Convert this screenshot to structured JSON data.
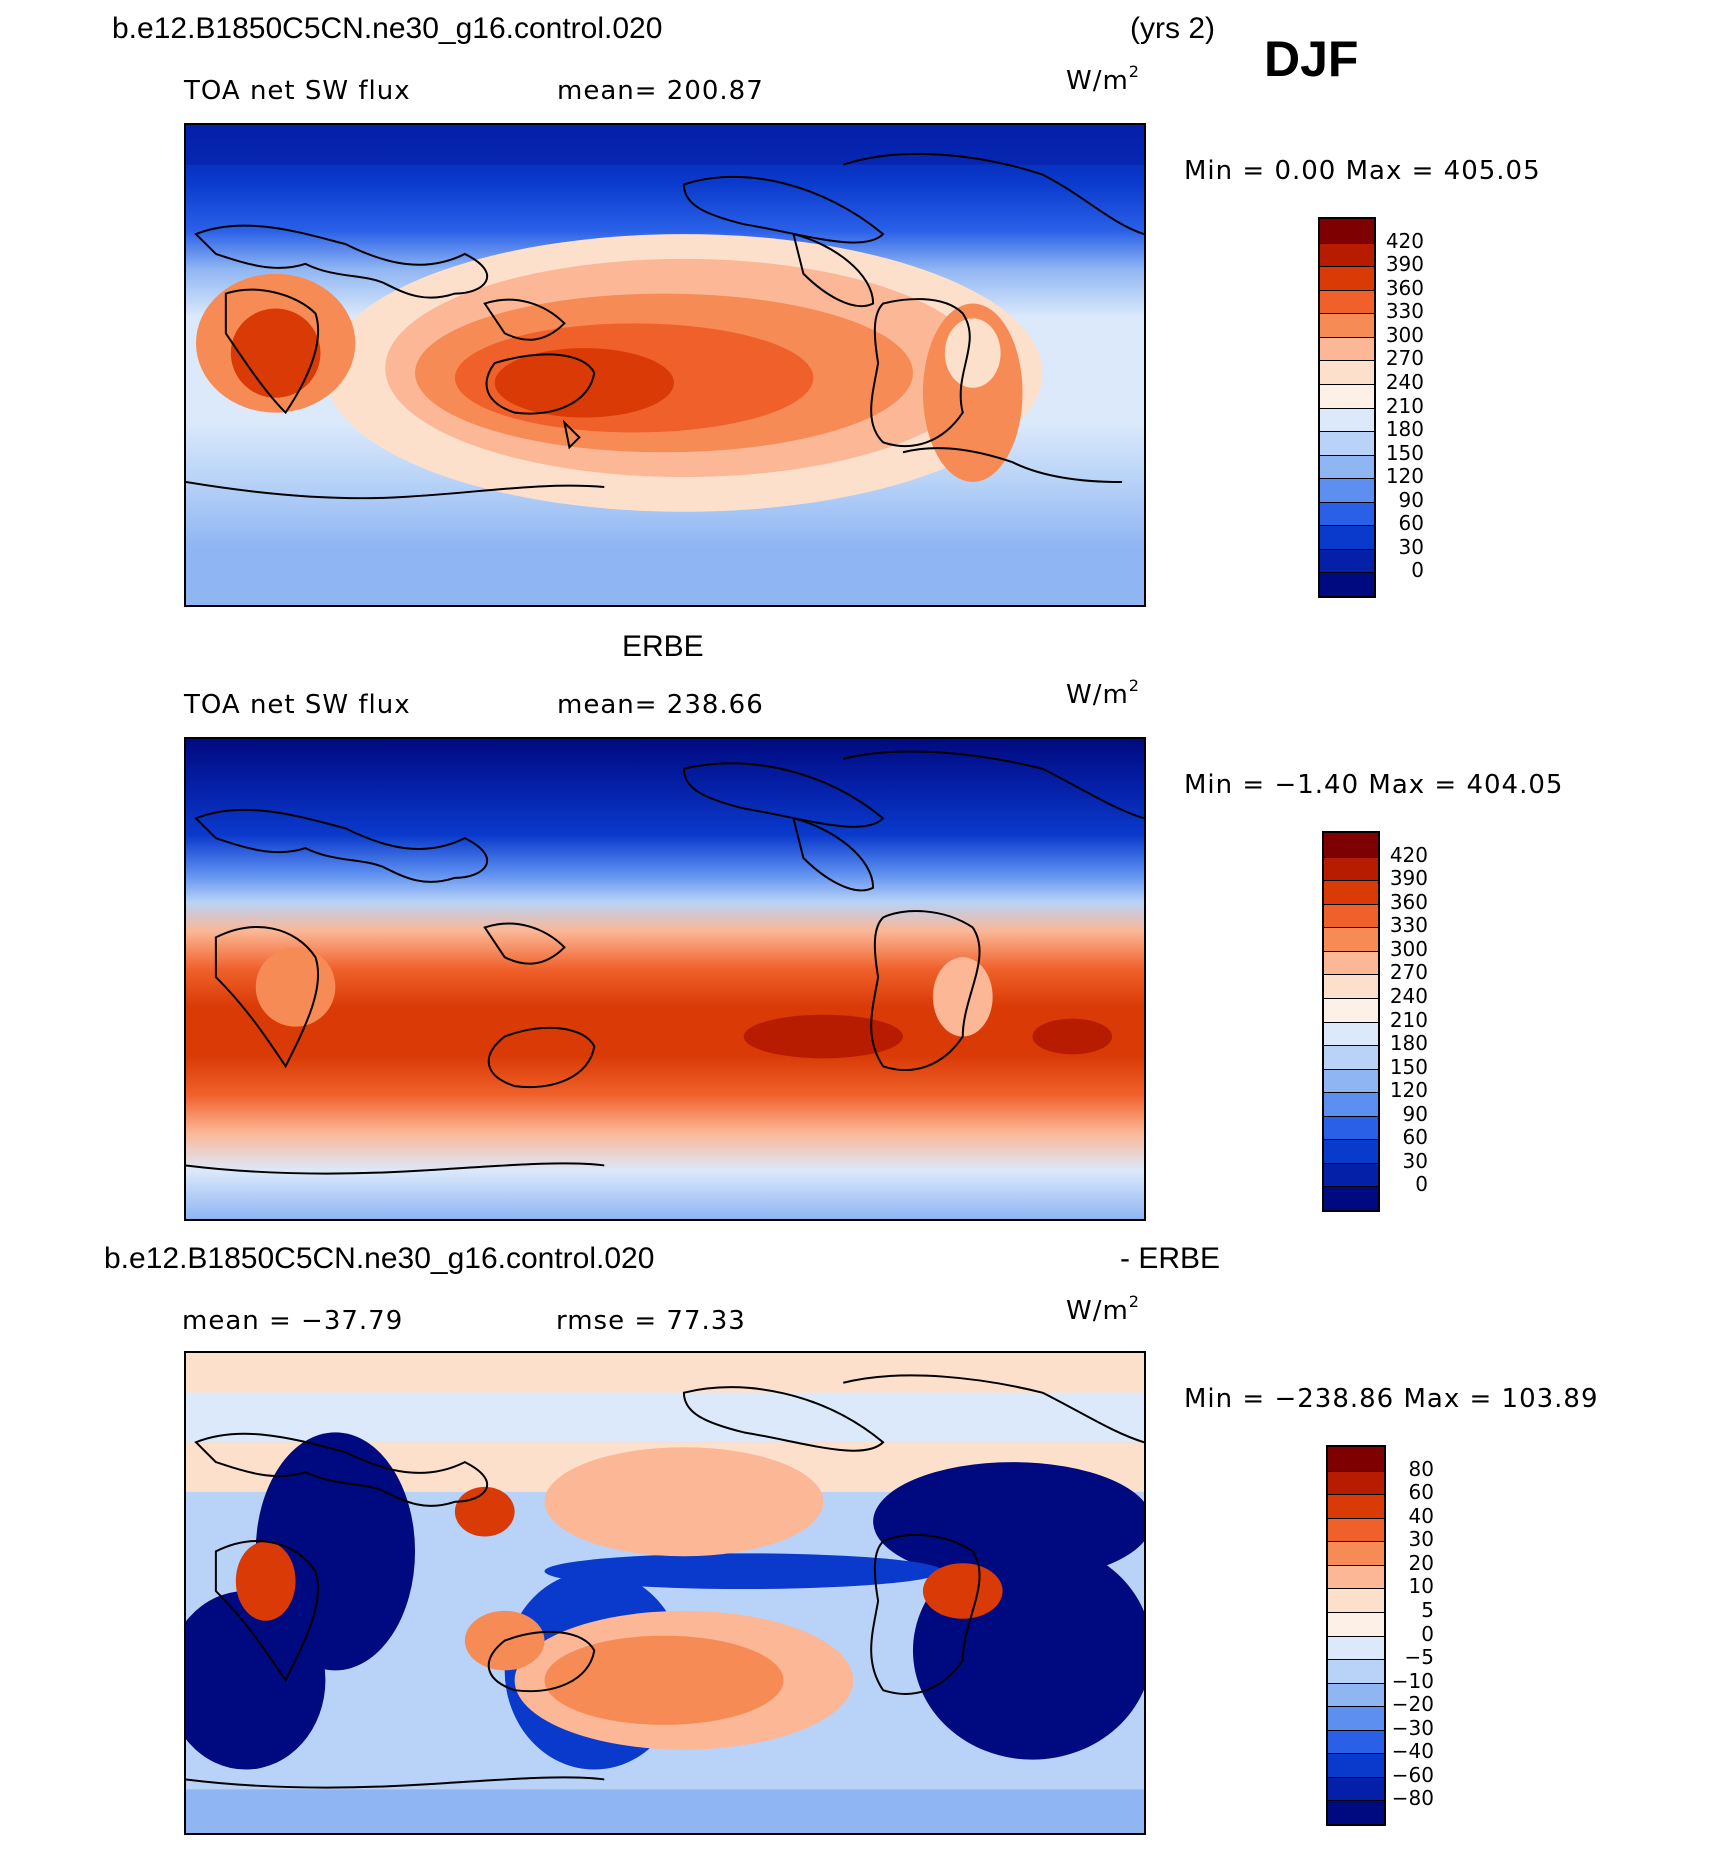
{
  "header": {
    "case_name": "b.e12.B1850C5CN.ne30_g16.control.020",
    "years": "(yrs 2)",
    "season": "DJF"
  },
  "panel_model": {
    "field": "TOA net SW flux",
    "mean_label": "mean=  200.87",
    "units": "W/m",
    "units_sup": "2",
    "minmax": "Min =    0.00  Max  =  405.05",
    "colorbar_ticks": [
      "420",
      "390",
      "360",
      "330",
      "300",
      "270",
      "240",
      "210",
      "180",
      "150",
      "120",
      "90",
      "60",
      "30",
      "0"
    ]
  },
  "panel_obs": {
    "title": "ERBE",
    "field": "TOA net SW flux",
    "mean_label": "mean=  238.66",
    "units": "W/m",
    "units_sup": "2",
    "minmax": "Min =  −1.40  Max  =  404.05",
    "colorbar_ticks": [
      "420",
      "390",
      "360",
      "330",
      "300",
      "270",
      "240",
      "210",
      "180",
      "150",
      "120",
      "90",
      "60",
      "30",
      "0"
    ]
  },
  "panel_diff": {
    "title_left": "b.e12.B1850C5CN.ne30_g16.control.020",
    "title_right": "- ERBE",
    "mean_label": "mean  =  −37.79",
    "rmse_label": "rmse  =   77.33",
    "units": "W/m",
    "units_sup": "2",
    "minmax": "Min  =  −238.86  Max  =  103.89",
    "colorbar_ticks": [
      "80",
      "60",
      "40",
      "30",
      "20",
      "10",
      "5",
      "0",
      "−5",
      "−10",
      "−20",
      "−30",
      "−40",
      "−60",
      "−80"
    ]
  },
  "colors": {
    "abs_scale": [
      "#7f0000",
      "#b81c00",
      "#d93a06",
      "#f0602a",
      "#f78b55",
      "#fbb796",
      "#fde0cc",
      "#fdf0e6",
      "#dbe9fb",
      "#b8d3f7",
      "#8fb5f3",
      "#5d8ff0",
      "#2a60e8",
      "#0a3acc",
      "#0520a8",
      "#000a80"
    ],
    "diff_scale": [
      "#7f0000",
      "#b81c00",
      "#d93a06",
      "#f0602a",
      "#f78b55",
      "#fbb796",
      "#fde0cc",
      "#fdf0e6",
      "#dbe9fb",
      "#b8d3f7",
      "#8fb5f3",
      "#5d8ff0",
      "#2a60e8",
      "#0a3acc",
      "#0520a8",
      "#000a80"
    ]
  }
}
